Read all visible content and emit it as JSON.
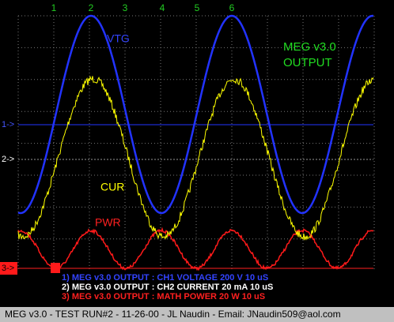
{
  "cursors": [
    "1",
    "2",
    "3",
    "4",
    "5",
    "6"
  ],
  "channel_markers": [
    "1->",
    "2->",
    "3->"
  ],
  "trace_labels": {
    "voltage": "VTG",
    "current": "CUR",
    "power": "PWR"
  },
  "title": {
    "line1": "MEG v3.0",
    "line2": "OUTPUT"
  },
  "legend": [
    "1) MEG v3.0 OUTPUT : CH1 VOLTAGE 200 V 10 uS",
    "2) MEG v3.0 OUTPUT : CH2 CURRENT 20 mA 10 uS",
    "3) MEG v3.0 OUTPUT : MATH POWER 20  W 10 uS"
  ],
  "footer": "MEG v3.0 - TEST RUN#2 - 11-26-00 - JL Naudin - Email: JNaudin509@aol.com"
}
